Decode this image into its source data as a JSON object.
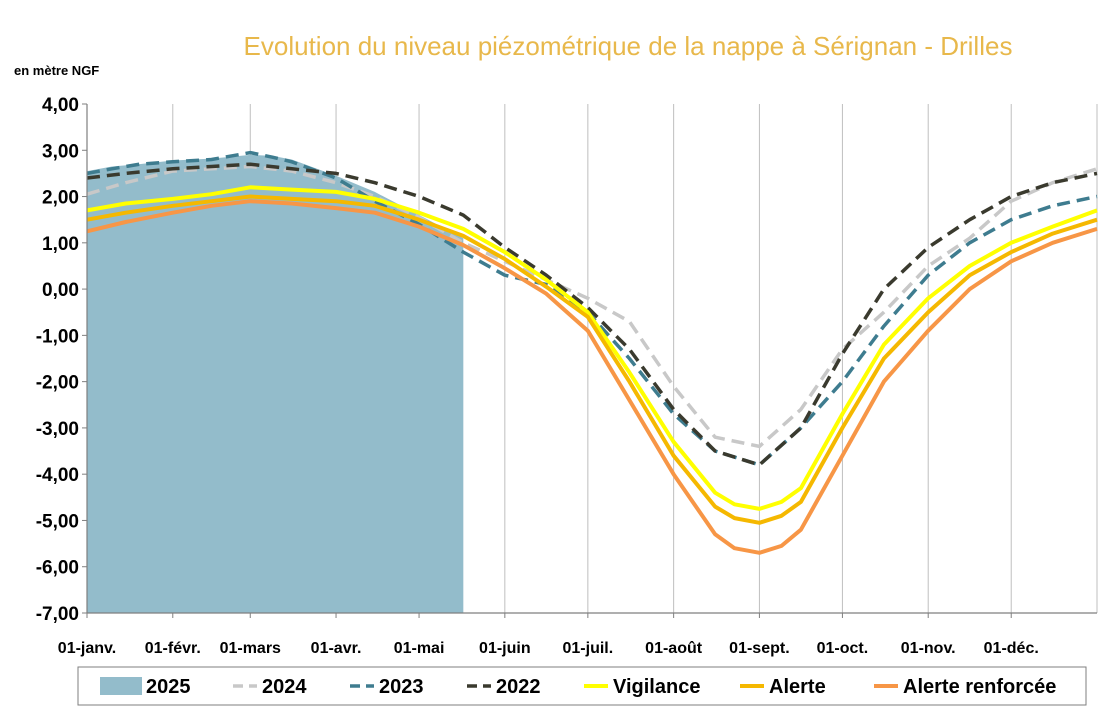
{
  "chart_data": {
    "type": "line",
    "title": "Evolution du niveau piézométrique de la nappe à Sérignan  - Drilles",
    "ylabel": "en mètre NGF",
    "xlabel": "",
    "ylim": [
      -7,
      4
    ],
    "xlim": [
      1,
      366
    ],
    "y_ticks": [
      4,
      3,
      2,
      1,
      0,
      -1,
      -2,
      -3,
      -4,
      -5,
      -6,
      -7
    ],
    "y_tick_labels": [
      "4,00",
      "3,00",
      "2,00",
      "1,00",
      "0,00",
      "-1,00",
      "-2,00",
      "-3,00",
      "-4,00",
      "-5,00",
      "-6,00",
      "-7,00"
    ],
    "x_ticks": [
      1,
      32,
      60,
      91,
      121,
      152,
      182,
      213,
      244,
      274,
      305,
      335
    ],
    "x_tick_labels": [
      "01-janv.",
      "01-févr.",
      "01-mars",
      "01-avr.",
      "01-mai",
      "01-juin",
      "01-juil.",
      "01-août",
      "01-sept.",
      "01-oct.",
      "01-nov.",
      "01-déc."
    ],
    "grid": "vertical",
    "legend_position": "bottom",
    "series": [
      {
        "name": "2025",
        "kind": "area",
        "color": "#93bccb",
        "x": [
          1,
          10,
          20,
          32,
          46,
          60,
          68,
          75,
          91,
          105,
          121,
          137
        ],
        "y": [
          2.55,
          2.65,
          2.7,
          2.78,
          2.82,
          2.9,
          2.88,
          2.8,
          2.45,
          2.1,
          1.6,
          1.1
        ]
      },
      {
        "name": "2024",
        "kind": "line",
        "dash": "grey",
        "color": "#c8c8c8",
        "x": [
          1,
          15,
          32,
          46,
          60,
          75,
          91,
          105,
          121,
          137,
          152,
          167,
          182,
          197,
          213,
          228,
          244,
          259,
          274,
          289,
          305,
          320,
          335,
          350,
          366
        ],
        "y": [
          2.05,
          2.3,
          2.55,
          2.6,
          2.65,
          2.55,
          2.3,
          2.0,
          1.55,
          1.0,
          0.6,
          0.2,
          -0.2,
          -0.7,
          -2.1,
          -3.2,
          -3.4,
          -2.6,
          -1.3,
          -0.5,
          0.5,
          1.1,
          1.9,
          2.3,
          2.6
        ]
      },
      {
        "name": "2023",
        "kind": "line",
        "color": "#3e7c8f",
        "x": [
          1,
          10,
          20,
          32,
          46,
          60,
          68,
          75,
          91,
          105,
          121,
          137,
          152,
          167,
          182,
          197,
          213,
          228,
          244,
          259,
          274,
          289,
          305,
          320,
          335,
          350,
          366
        ],
        "y": [
          2.5,
          2.6,
          2.7,
          2.75,
          2.8,
          2.95,
          2.85,
          2.75,
          2.4,
          1.9,
          1.4,
          0.8,
          0.3,
          0.1,
          -0.5,
          -1.5,
          -2.7,
          -3.5,
          -3.8,
          -3.0,
          -2.0,
          -0.8,
          0.3,
          1.0,
          1.5,
          1.8,
          2.0
        ]
      },
      {
        "name": "2022",
        "kind": "line",
        "color": "#3a3a2e",
        "x": [
          1,
          15,
          32,
          46,
          60,
          75,
          91,
          105,
          121,
          137,
          152,
          167,
          182,
          197,
          213,
          228,
          244,
          259,
          274,
          289,
          305,
          320,
          335,
          350,
          366
        ],
        "y": [
          2.4,
          2.5,
          2.6,
          2.65,
          2.7,
          2.6,
          2.5,
          2.3,
          2.0,
          1.6,
          0.9,
          0.3,
          -0.4,
          -1.3,
          -2.6,
          -3.5,
          -3.8,
          -3.0,
          -1.4,
          0.0,
          0.9,
          1.5,
          2.0,
          2.3,
          2.5
        ]
      },
      {
        "name": "Vigilance",
        "kind": "line",
        "color": "#ffff00",
        "x": [
          1,
          15,
          32,
          46,
          60,
          75,
          91,
          105,
          121,
          137,
          152,
          167,
          182,
          197,
          213,
          228,
          235,
          244,
          252,
          259,
          274,
          289,
          305,
          320,
          335,
          350,
          366
        ],
        "y": [
          1.7,
          1.85,
          1.95,
          2.05,
          2.2,
          2.15,
          2.1,
          1.95,
          1.65,
          1.3,
          0.8,
          0.2,
          -0.5,
          -1.8,
          -3.3,
          -4.4,
          -4.65,
          -4.75,
          -4.6,
          -4.3,
          -2.7,
          -1.2,
          -0.2,
          0.5,
          1.0,
          1.35,
          1.7
        ]
      },
      {
        "name": "Alerte",
        "kind": "line",
        "color": "#f5b800",
        "x": [
          1,
          15,
          32,
          46,
          60,
          75,
          91,
          105,
          121,
          137,
          152,
          167,
          182,
          197,
          213,
          228,
          235,
          244,
          252,
          259,
          274,
          289,
          305,
          320,
          335,
          350,
          366
        ],
        "y": [
          1.5,
          1.65,
          1.8,
          1.9,
          2.0,
          1.95,
          1.9,
          1.8,
          1.5,
          1.15,
          0.65,
          0.05,
          -0.6,
          -2.0,
          -3.6,
          -4.7,
          -4.95,
          -5.05,
          -4.9,
          -4.6,
          -3.0,
          -1.5,
          -0.5,
          0.3,
          0.8,
          1.2,
          1.5
        ]
      },
      {
        "name": "Alerte renforcée",
        "kind": "line",
        "color": "#f79646",
        "x": [
          1,
          15,
          32,
          46,
          60,
          75,
          91,
          105,
          121,
          137,
          152,
          167,
          182,
          197,
          213,
          228,
          235,
          244,
          252,
          259,
          274,
          289,
          305,
          320,
          335,
          350,
          366
        ],
        "y": [
          1.25,
          1.45,
          1.65,
          1.8,
          1.9,
          1.85,
          1.75,
          1.65,
          1.35,
          0.95,
          0.45,
          -0.1,
          -0.9,
          -2.4,
          -4.0,
          -5.3,
          -5.6,
          -5.7,
          -5.55,
          -5.2,
          -3.6,
          -2.0,
          -0.9,
          0.0,
          0.6,
          1.0,
          1.3
        ]
      }
    ]
  }
}
